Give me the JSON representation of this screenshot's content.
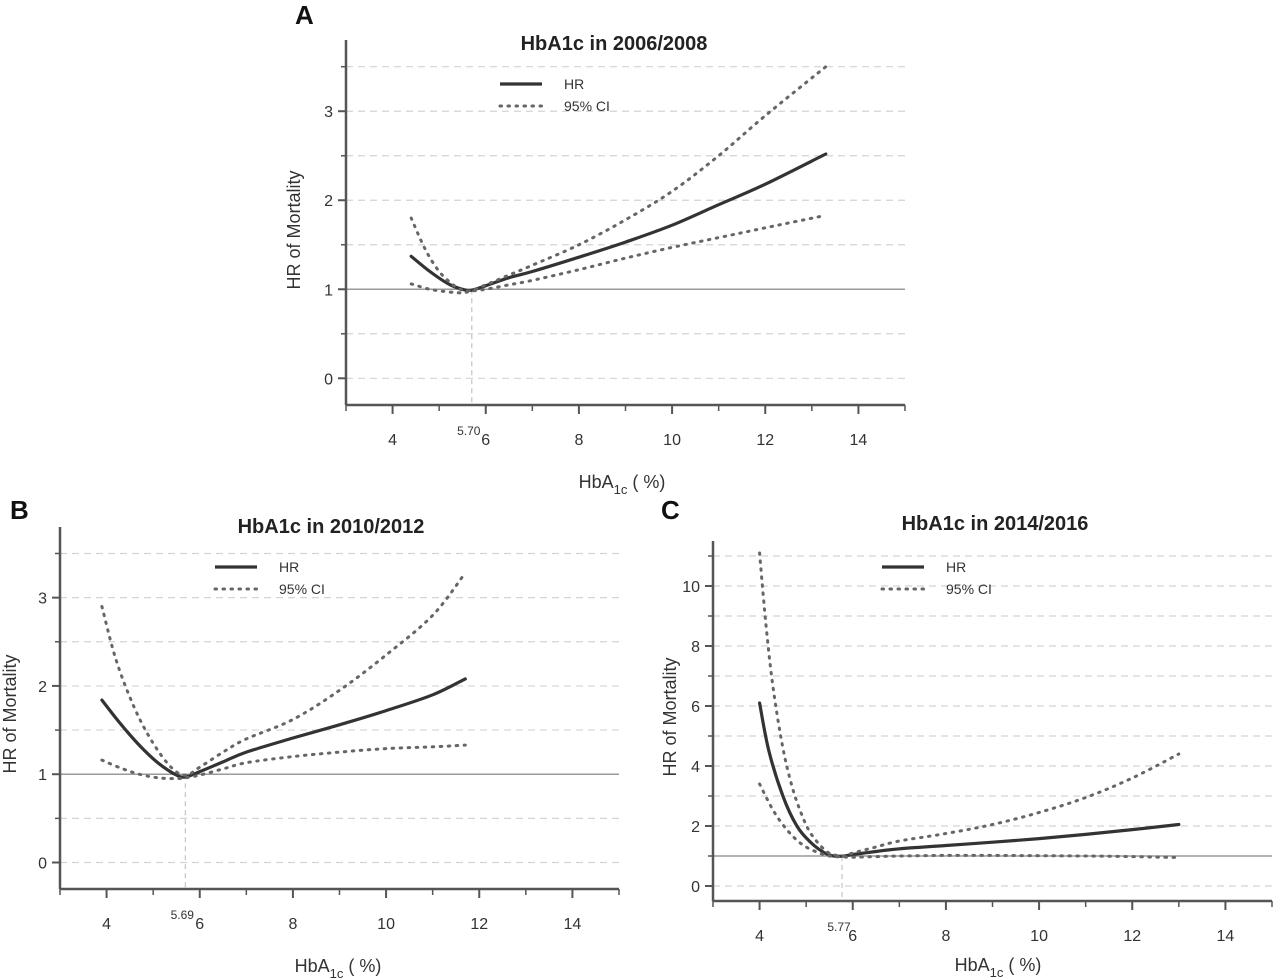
{
  "chart_data": [
    {
      "panel": "A",
      "type": "line",
      "title": "HbA1c in 2006/2008",
      "xlabel_main": "HbA",
      "xlabel_sub": "1c",
      "xlabel_unit": "( %)",
      "ylabel": "HR of Mortality",
      "xlim": [
        3,
        15
      ],
      "ylim": [
        -0.3,
        3.8
      ],
      "xticks": [
        "4",
        "6",
        "8",
        "10",
        "12",
        "14"
      ],
      "yticks": [
        "0",
        "1",
        "2",
        "3"
      ],
      "nadir_label": "5.70",
      "nadir_x": 5.7,
      "legend": {
        "hr": "HR",
        "ci": "95% CI"
      },
      "series": [
        {
          "name": "HR",
          "x": [
            4.4,
            4.8,
            5.2,
            5.5,
            5.7,
            6.0,
            6.5,
            7.0,
            8.0,
            9.0,
            10.0,
            11.0,
            12.0,
            13.3
          ],
          "y": [
            1.37,
            1.2,
            1.06,
            1.0,
            0.99,
            1.04,
            1.13,
            1.2,
            1.36,
            1.53,
            1.72,
            1.95,
            2.18,
            2.52
          ]
        },
        {
          "name": "95% CI upper",
          "x": [
            4.4,
            4.7,
            5.0,
            5.3,
            5.5,
            5.7,
            6.0,
            6.5,
            7.0,
            8.0,
            9.0,
            10.0,
            11.0,
            12.0,
            13.3
          ],
          "y": [
            1.8,
            1.45,
            1.2,
            1.05,
            0.99,
            0.99,
            1.05,
            1.16,
            1.27,
            1.5,
            1.78,
            2.1,
            2.5,
            2.95,
            3.5
          ]
        },
        {
          "name": "95% CI lower",
          "x": [
            4.4,
            4.8,
            5.2,
            5.5,
            5.7,
            6.0,
            6.5,
            7.0,
            8.0,
            9.0,
            10.0,
            11.0,
            12.0,
            13.2
          ],
          "y": [
            1.06,
            1.0,
            0.97,
            0.96,
            0.98,
            1.0,
            1.05,
            1.1,
            1.22,
            1.35,
            1.47,
            1.58,
            1.69,
            1.82
          ]
        }
      ],
      "reference_line": 1
    },
    {
      "panel": "B",
      "type": "line",
      "title": "HbA1c in 2010/2012",
      "xlabel_main": "HbA",
      "xlabel_sub": "1c",
      "xlabel_unit": "( %)",
      "ylabel": "HR of Mortality",
      "xlim": [
        3,
        15
      ],
      "ylim": [
        -0.3,
        3.8
      ],
      "xticks": [
        "4",
        "6",
        "8",
        "10",
        "12",
        "14"
      ],
      "yticks": [
        "0",
        "1",
        "2",
        "3"
      ],
      "nadir_label": "5.69",
      "nadir_x": 5.69,
      "legend": {
        "hr": "HR",
        "ci": "95% CI"
      },
      "series": [
        {
          "name": "HR",
          "x": [
            3.9,
            4.3,
            4.7,
            5.1,
            5.5,
            5.7,
            6.0,
            6.5,
            7.0,
            8.0,
            9.0,
            10.0,
            11.0,
            11.7
          ],
          "y": [
            1.84,
            1.57,
            1.33,
            1.13,
            0.99,
            0.97,
            1.03,
            1.14,
            1.25,
            1.41,
            1.56,
            1.72,
            1.9,
            2.08
          ]
        },
        {
          "name": "95% CI upper",
          "x": [
            3.9,
            4.2,
            4.6,
            5.0,
            5.4,
            5.7,
            6.0,
            6.5,
            7.0,
            8.0,
            9.0,
            10.0,
            11.0,
            11.7
          ],
          "y": [
            2.9,
            2.3,
            1.75,
            1.35,
            1.07,
            0.99,
            1.08,
            1.25,
            1.4,
            1.62,
            1.95,
            2.35,
            2.8,
            3.28
          ]
        },
        {
          "name": "95% CI lower",
          "x": [
            3.9,
            4.3,
            4.7,
            5.1,
            5.5,
            5.7,
            6.0,
            6.5,
            7.0,
            8.0,
            9.0,
            10.0,
            11.0,
            11.7
          ],
          "y": [
            1.16,
            1.07,
            1.0,
            0.96,
            0.95,
            0.96,
            0.99,
            1.06,
            1.13,
            1.2,
            1.25,
            1.29,
            1.31,
            1.33
          ]
        }
      ],
      "reference_line": 1
    },
    {
      "panel": "C",
      "type": "line",
      "title": "HbA1c in 2014/2016",
      "xlabel_main": "HbA",
      "xlabel_sub": "1c",
      "xlabel_unit": "( %)",
      "ylabel": "HR of Mortality",
      "xlim": [
        3,
        15
      ],
      "ylim": [
        -0.5,
        11.5
      ],
      "xticks": [
        "4",
        "6",
        "8",
        "10",
        "12",
        "14"
      ],
      "yticks": [
        "0",
        "2",
        "4",
        "6",
        "8",
        "10"
      ],
      "nadir_label": "5.77",
      "nadir_x": 5.77,
      "legend": {
        "hr": "HR",
        "ci": "95% CI"
      },
      "series": [
        {
          "name": "HR",
          "x": [
            4.0,
            4.2,
            4.5,
            4.8,
            5.1,
            5.4,
            5.6,
            5.8,
            6.0,
            6.5,
            7.0,
            8.0,
            9.0,
            10.0,
            11.0,
            12.0,
            13.0
          ],
          "y": [
            6.1,
            4.5,
            3.0,
            2.0,
            1.45,
            1.1,
            1.0,
            1.0,
            1.05,
            1.15,
            1.24,
            1.35,
            1.46,
            1.58,
            1.72,
            1.88,
            2.05
          ]
        },
        {
          "name": "95% CI upper",
          "x": [
            4.0,
            4.15,
            4.3,
            4.5,
            4.7,
            4.9,
            5.1,
            5.4,
            5.6,
            5.8,
            6.0,
            6.5,
            7.0,
            8.0,
            9.0,
            10.0,
            11.0,
            12.0,
            13.0
          ],
          "y": [
            11.1,
            8.5,
            6.5,
            4.6,
            3.3,
            2.4,
            1.75,
            1.2,
            1.04,
            1.0,
            1.1,
            1.3,
            1.5,
            1.75,
            2.05,
            2.45,
            2.95,
            3.6,
            4.4
          ]
        },
        {
          "name": "95% CI lower",
          "x": [
            4.0,
            4.3,
            4.6,
            4.9,
            5.2,
            5.5,
            5.8,
            6.0,
            6.5,
            7.0,
            8.0,
            9.0,
            10.0,
            11.0,
            12.0,
            13.0
          ],
          "y": [
            3.4,
            2.5,
            1.85,
            1.4,
            1.15,
            1.0,
            0.97,
            0.96,
            0.98,
            1.0,
            1.02,
            1.02,
            1.01,
            1.0,
            0.98,
            0.95
          ]
        }
      ],
      "reference_line": 1
    }
  ]
}
